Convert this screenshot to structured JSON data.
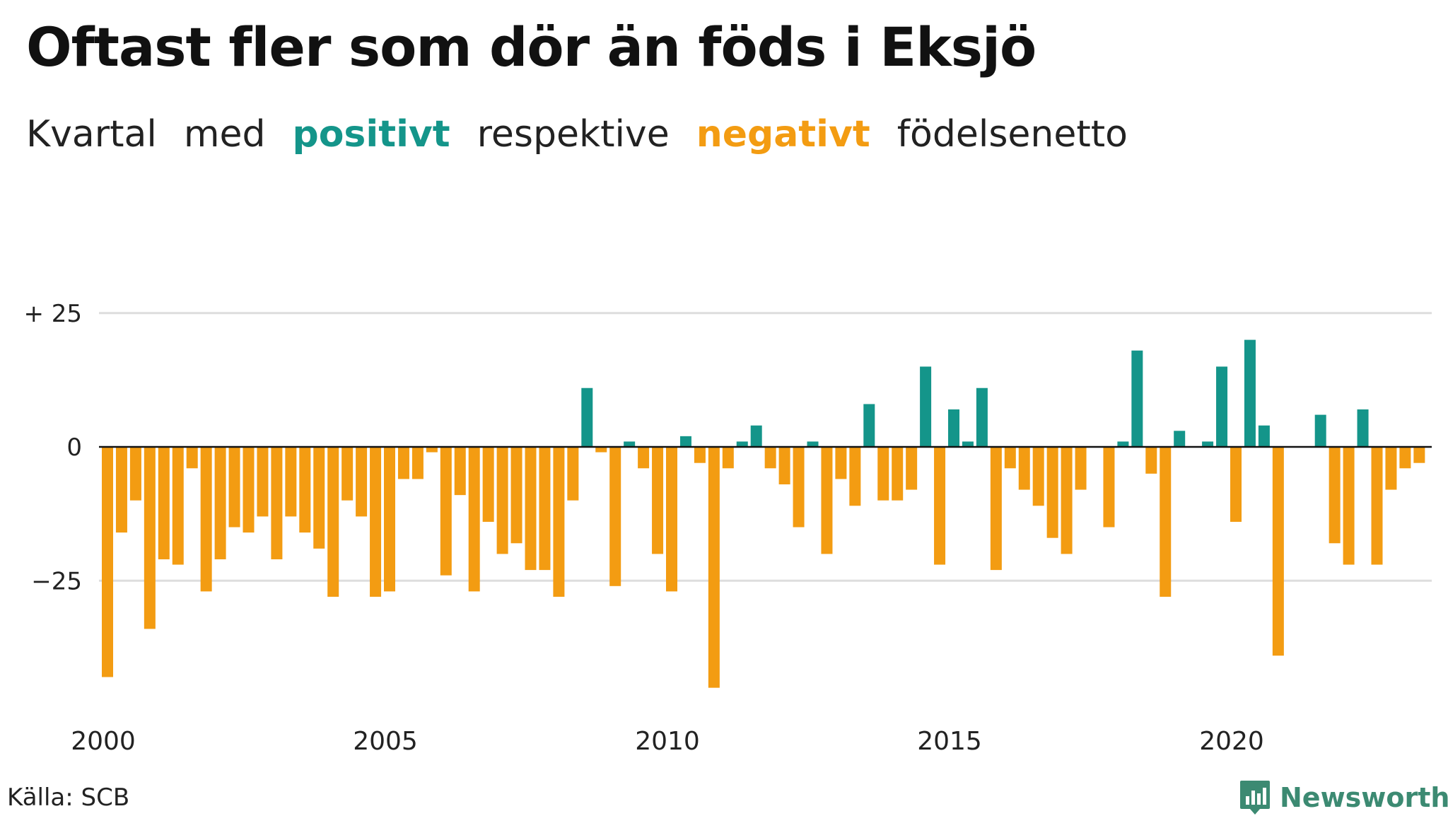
{
  "title": "Oftast fler som dör än föds i Eksjö",
  "subtitle": {
    "w1": "Kvartal",
    "w2": "med",
    "positive": "positivt",
    "w3": "respektive",
    "negative": "negativt",
    "w4": "födelsenetto"
  },
  "colors": {
    "positive": "#14958a",
    "negative": "#f39c12",
    "grid": "#dddddd",
    "zero": "#111111"
  },
  "chart_data": {
    "type": "bar",
    "start_year": 2000,
    "periods_per_year": 4,
    "ylim": [
      -46,
      30
    ],
    "yticks": [
      {
        "value": 25,
        "label": "+ 25"
      },
      {
        "value": 0,
        "label": "0"
      },
      {
        "value": -25,
        "label": "−25"
      }
    ],
    "xticks": [
      {
        "year": 2000,
        "label": "2000"
      },
      {
        "year": 2005,
        "label": "2005"
      },
      {
        "year": 2010,
        "label": "2010"
      },
      {
        "year": 2015,
        "label": "2015"
      },
      {
        "year": 2020,
        "label": "2020"
      }
    ],
    "values": [
      -43,
      -16,
      -10,
      -34,
      -21,
      -22,
      -4,
      -27,
      -21,
      -15,
      -16,
      -13,
      -21,
      -13,
      -16,
      -19,
      -28,
      -10,
      -13,
      -28,
      -27,
      -6,
      -6,
      -1,
      -24,
      -9,
      -27,
      -14,
      -20,
      -18,
      -23,
      -23,
      -28,
      -10,
      11,
      -1,
      -26,
      1,
      -4,
      -20,
      -27,
      2,
      -3,
      -45,
      -4,
      1,
      4,
      -4,
      -7,
      -15,
      1,
      -20,
      -6,
      -11,
      8,
      -10,
      -10,
      -8,
      15,
      -22,
      7,
      1,
      11,
      -23,
      -4,
      -8,
      -11,
      -17,
      -20,
      -8,
      0,
      -15,
      1,
      18,
      -5,
      -28,
      3,
      0,
      1,
      15,
      -14,
      20,
      4,
      -39,
      0,
      0,
      6,
      -18,
      -22,
      7,
      -22,
      -8,
      -4,
      -3
    ]
  },
  "source": "Källa: SCB",
  "brand": "Newsworthy",
  "icons": {
    "brand_logo": "bar-chart-badge-icon"
  }
}
